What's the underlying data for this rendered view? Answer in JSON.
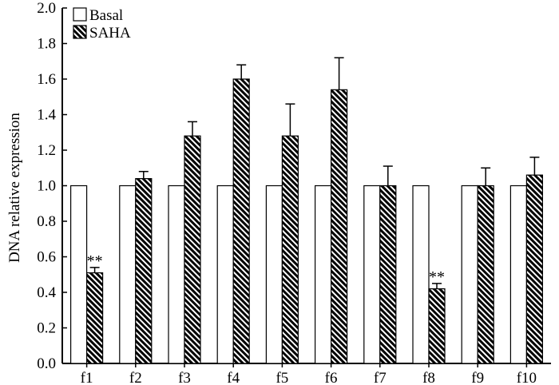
{
  "chart_data": {
    "type": "bar",
    "title": "",
    "xlabel": "",
    "ylabel": "DNA relative expression",
    "ylim": [
      0,
      2.0
    ],
    "yticks": [
      "0.0",
      "0.2",
      "0.4",
      "0.6",
      "0.8",
      "1.0",
      "1.2",
      "1.4",
      "1.6",
      "1.8",
      "2.0"
    ],
    "categories": [
      "f1",
      "f2",
      "f3",
      "f4",
      "f5",
      "f6",
      "f7",
      "f8",
      "f9",
      "f10"
    ],
    "series": [
      {
        "name": "Basal",
        "values": [
          1.0,
          1.0,
          1.0,
          1.0,
          1.0,
          1.0,
          1.0,
          1.0,
          1.0,
          1.0
        ],
        "errors": [
          0,
          0,
          0,
          0,
          0,
          0,
          0,
          0,
          0,
          0
        ],
        "fill": "#ffffff",
        "pattern": "none"
      },
      {
        "name": "SAHA",
        "values": [
          0.51,
          1.04,
          1.28,
          1.6,
          1.28,
          1.54,
          1.0,
          0.42,
          1.0,
          1.06
        ],
        "errors": [
          0.03,
          0.04,
          0.08,
          0.08,
          0.18,
          0.18,
          0.11,
          0.03,
          0.1,
          0.1
        ],
        "fill": "#000000",
        "pattern": "diagonal-hatch"
      }
    ],
    "annotations": [
      {
        "category": "f1",
        "series": "SAHA",
        "text": "**"
      },
      {
        "category": "f8",
        "series": "SAHA",
        "text": "**"
      }
    ],
    "legend": {
      "placement": "top-left"
    },
    "grid": false
  }
}
